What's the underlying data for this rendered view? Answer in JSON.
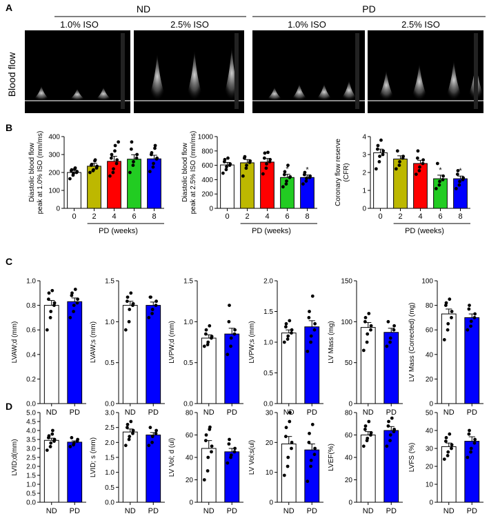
{
  "panels": {
    "a": "A",
    "b": "B",
    "c": "C",
    "d": "D"
  },
  "panel_a": {
    "group_nd": "ND",
    "group_pd": "PD",
    "iso_labels": [
      "1.0% ISO",
      "2.5% ISO",
      "1.0% ISO",
      "2.5% ISO"
    ],
    "row_label": "Blood flow"
  },
  "chart_data": [
    {
      "id": "b1",
      "type": "bar",
      "categories": [
        "0",
        "2",
        "4",
        "6",
        "8"
      ],
      "values": [
        200,
        235,
        262,
        274,
        276
      ],
      "errors": [
        12,
        16,
        28,
        25,
        20
      ],
      "colors": [
        "#ffffff",
        "#bdb800",
        "#ff0000",
        "#22cc22",
        "#0000ff"
      ],
      "ylabel": [
        "Diastolic blood flow",
        "peak at 1.0% ISO (mm/ms)"
      ],
      "xlabel": "PD (weeks)",
      "ylim": [
        0,
        400
      ],
      "yticks": [
        0,
        100,
        200,
        300,
        400
      ],
      "significance": [
        "",
        "",
        "",
        "",
        ""
      ],
      "points": [
        [
          165,
          185,
          195,
          200,
          205,
          210,
          215,
          220,
          225
        ],
        [
          200,
          210,
          215,
          225,
          235,
          240,
          245,
          265,
          270
        ],
        [
          180,
          200,
          220,
          250,
          270,
          280,
          300,
          320,
          350,
          370
        ],
        [
          200,
          240,
          260,
          280,
          300,
          330,
          370
        ],
        [
          205,
          230,
          250,
          275,
          280,
          300,
          310,
          335,
          350
        ]
      ]
    },
    {
      "id": "b2",
      "type": "bar",
      "categories": [
        "0",
        "2",
        "4",
        "6",
        "8"
      ],
      "values": [
        605,
        635,
        645,
        430,
        430
      ],
      "errors": [
        35,
        45,
        50,
        45,
        35
      ],
      "colors": [
        "#ffffff",
        "#bdb800",
        "#ff0000",
        "#22cc22",
        "#0000ff"
      ],
      "ylabel": [
        "Diastolic blood flow",
        "peak at 2.5% ISO (mm/ms)"
      ],
      "xlabel": "PD (weeks)",
      "ylim": [
        0,
        1000
      ],
      "yticks": [
        0,
        200,
        400,
        600,
        800,
        1000
      ],
      "significance": [
        "",
        "",
        "",
        "*",
        "*"
      ],
      "points": [
        [
          490,
          540,
          580,
          600,
          620,
          650,
          680,
          700
        ],
        [
          450,
          560,
          600,
          640,
          660,
          700,
          720
        ],
        [
          480,
          560,
          620,
          650,
          680,
          700,
          770,
          780
        ],
        [
          300,
          340,
          380,
          430,
          440,
          470,
          510,
          600
        ],
        [
          340,
          380,
          420,
          430,
          450,
          470,
          500
        ]
      ]
    },
    {
      "id": "b3",
      "type": "bar",
      "categories": [
        "0",
        "2",
        "4",
        "6",
        "8"
      ],
      "values": [
        3.1,
        2.75,
        2.5,
        1.65,
        1.65
      ],
      "errors": [
        0.2,
        0.18,
        0.18,
        0.2,
        0.15
      ],
      "colors": [
        "#ffffff",
        "#bdb800",
        "#ff0000",
        "#22cc22",
        "#0000ff"
      ],
      "ylabel": [
        "Coronary flow reserve",
        "(CFR)"
      ],
      "xlabel": "PD (weeks)",
      "ylim": [
        0,
        4
      ],
      "yticks": [
        0,
        1,
        2,
        3,
        4
      ],
      "significance": [
        "",
        "",
        "",
        "*",
        "*"
      ],
      "points": [
        [
          2.2,
          2.6,
          2.9,
          3.0,
          3.2,
          3.3,
          3.5,
          3.8
        ],
        [
          2.2,
          2.4,
          2.6,
          2.8,
          2.9,
          3.2
        ],
        [
          1.9,
          2.1,
          2.3,
          2.5,
          2.7,
          2.8,
          3.2
        ],
        [
          1.1,
          1.3,
          1.5,
          1.6,
          1.8,
          2.5
        ],
        [
          1.1,
          1.3,
          1.5,
          1.6,
          1.7,
          1.9,
          2.1
        ]
      ]
    },
    {
      "id": "c1",
      "type": "bar",
      "categories": [
        "ND",
        "PD"
      ],
      "values": [
        0.8,
        0.83
      ],
      "errors": [
        0.04,
        0.03
      ],
      "colors": [
        "#ffffff",
        "#0000ff"
      ],
      "ylabel": [
        "LVAW;d (mm)"
      ],
      "ylim": [
        0,
        1.0
      ],
      "yticks": [
        0,
        0.2,
        0.4,
        0.6,
        0.8,
        1.0
      ],
      "significance": [
        "",
        ""
      ],
      "points": [
        [
          0.6,
          0.7,
          0.75,
          0.8,
          0.82,
          0.85,
          0.9,
          0.92
        ],
        [
          0.7,
          0.75,
          0.8,
          0.82,
          0.85,
          0.88,
          0.9,
          0.93
        ]
      ]
    },
    {
      "id": "c2",
      "type": "bar",
      "categories": [
        "ND",
        "PD"
      ],
      "values": [
        1.2,
        1.2
      ],
      "errors": [
        0.05,
        0.04
      ],
      "colors": [
        "#ffffff",
        "#0000ff"
      ],
      "ylabel": [
        "LVAW;s (mm)"
      ],
      "ylim": [
        0,
        1.5
      ],
      "yticks": [
        0,
        0.5,
        1.0,
        1.5
      ],
      "significance": [
        "",
        ""
      ],
      "points": [
        [
          0.9,
          1.0,
          1.15,
          1.2,
          1.22,
          1.25,
          1.3,
          1.35
        ],
        [
          1.05,
          1.1,
          1.15,
          1.2,
          1.25,
          1.3,
          1.3
        ]
      ]
    },
    {
      "id": "c3",
      "type": "bar",
      "categories": [
        "ND",
        "PD"
      ],
      "values": [
        0.8,
        0.85
      ],
      "errors": [
        0.04,
        0.07
      ],
      "colors": [
        "#ffffff",
        "#0000ff"
      ],
      "ylabel": [
        "LVPW;d (mm)"
      ],
      "ylim": [
        0,
        1.5
      ],
      "yticks": [
        0,
        0.5,
        1.0,
        1.5
      ],
      "significance": [
        "",
        ""
      ],
      "points": [
        [
          0.7,
          0.72,
          0.75,
          0.8,
          0.82,
          0.85,
          0.9,
          0.95
        ],
        [
          0.6,
          0.7,
          0.8,
          0.85,
          0.9,
          1.0,
          1.2
        ]
      ]
    },
    {
      "id": "c4",
      "type": "bar",
      "categories": [
        "ND",
        "PD"
      ],
      "values": [
        1.15,
        1.25
      ],
      "errors": [
        0.05,
        0.1
      ],
      "colors": [
        "#ffffff",
        "#0000ff"
      ],
      "ylabel": [
        "LVPW;s (mm)"
      ],
      "ylim": [
        0,
        2.0
      ],
      "yticks": [
        0,
        0.5,
        1.0,
        1.5,
        2.0
      ],
      "significance": [
        "",
        ""
      ],
      "points": [
        [
          1.0,
          1.05,
          1.1,
          1.15,
          1.2,
          1.25,
          1.3,
          1.35
        ],
        [
          0.85,
          1.0,
          1.1,
          1.2,
          1.3,
          1.4,
          1.5,
          1.75
        ]
      ]
    },
    {
      "id": "c5",
      "type": "bar",
      "categories": [
        "ND",
        "PD"
      ],
      "values": [
        93,
        87
      ],
      "errors": [
        6,
        5
      ],
      "colors": [
        "#ffffff",
        "#0000ff"
      ],
      "ylabel": [
        "LV Mass (mg)"
      ],
      "ylim": [
        0,
        150
      ],
      "yticks": [
        0,
        50,
        100,
        150
      ],
      "significance": [
        "",
        ""
      ],
      "points": [
        [
          65,
          75,
          85,
          90,
          95,
          100,
          105,
          110
        ],
        [
          70,
          75,
          80,
          90,
          95,
          100
        ]
      ]
    },
    {
      "id": "c6",
      "type": "bar",
      "categories": [
        "ND",
        "PD"
      ],
      "values": [
        73,
        70
      ],
      "errors": [
        4,
        3
      ],
      "colors": [
        "#ffffff",
        "#0000ff"
      ],
      "ylabel": [
        "LV Mass (Corrected) (mg)"
      ],
      "ylim": [
        0,
        100
      ],
      "yticks": [
        0,
        20,
        40,
        60,
        80,
        100
      ],
      "significance": [
        "",
        ""
      ],
      "points": [
        [
          52,
          60,
          65,
          70,
          75,
          80,
          82,
          85
        ],
        [
          60,
          63,
          67,
          70,
          73,
          77,
          80
        ]
      ]
    },
    {
      "id": "d1",
      "type": "bar",
      "categories": [
        "ND",
        "PD"
      ],
      "values": [
        3.45,
        3.35
      ],
      "errors": [
        0.12,
        0.07
      ],
      "colors": [
        "#ffffff",
        "#0000ff"
      ],
      "ylabel": [
        "LVID;d(mm)"
      ],
      "ylim": [
        0,
        5.0
      ],
      "yticks": [
        0,
        0.5,
        1.0,
        1.5,
        2.0,
        2.5,
        3.0,
        3.5,
        4.0,
        4.5,
        5.0
      ],
      "significance": [
        "",
        ""
      ],
      "points": [
        [
          2.9,
          3.1,
          3.3,
          3.4,
          3.5,
          3.6,
          3.7,
          3.8,
          4.0
        ],
        [
          3.1,
          3.2,
          3.3,
          3.4,
          3.5,
          3.6
        ]
      ]
    },
    {
      "id": "d2",
      "type": "bar",
      "categories": [
        "ND",
        "PD"
      ],
      "values": [
        2.35,
        2.25
      ],
      "errors": [
        0.1,
        0.08
      ],
      "colors": [
        "#ffffff",
        "#0000ff"
      ],
      "ylabel": [
        "LVID; s (mm)"
      ],
      "ylim": [
        0,
        3.0
      ],
      "yticks": [
        0,
        0.5,
        1.0,
        1.5,
        2.0,
        2.5,
        3.0
      ],
      "significance": [
        "",
        ""
      ],
      "points": [
        [
          1.9,
          2.1,
          2.2,
          2.3,
          2.4,
          2.5,
          2.6,
          2.7
        ],
        [
          1.9,
          2.0,
          2.2,
          2.3,
          2.4,
          2.5
        ]
      ]
    },
    {
      "id": "d3",
      "type": "bar",
      "categories": [
        "ND",
        "PD"
      ],
      "values": [
        48,
        45
      ],
      "errors": [
        7,
        3
      ],
      "colors": [
        "#ffffff",
        "#0000ff"
      ],
      "ylabel": [
        "LV Vol; d (ul)"
      ],
      "ylim": [
        0,
        80
      ],
      "yticks": [
        0,
        20,
        40,
        60,
        80
      ],
      "significance": [
        "",
        ""
      ],
      "points": [
        [
          20,
          28,
          40,
          45,
          50,
          55,
          60,
          65,
          67
        ],
        [
          35,
          40,
          42,
          45,
          48,
          52,
          56
        ]
      ]
    },
    {
      "id": "d4",
      "type": "bar",
      "categories": [
        "ND",
        "PD"
      ],
      "values": [
        19.5,
        17.5
      ],
      "errors": [
        2.5,
        2
      ],
      "colors": [
        "#ffffff",
        "#0000ff"
      ],
      "ylabel": [
        "LV Vol;s(ul)"
      ],
      "ylim": [
        0,
        30
      ],
      "yticks": [
        0,
        10,
        20,
        30
      ],
      "significance": [
        "",
        ""
      ],
      "points": [
        [
          9,
          12,
          15,
          18,
          20,
          22,
          25,
          27,
          30
        ],
        [
          7,
          12,
          14,
          16,
          18,
          20,
          23,
          26
        ]
      ]
    },
    {
      "id": "d5",
      "type": "bar",
      "categories": [
        "ND",
        "PD"
      ],
      "values": [
        60,
        64
      ],
      "errors": [
        3,
        3.5
      ],
      "colors": [
        "#ffffff",
        "#0000ff"
      ],
      "ylabel": [
        "LVEF(%)"
      ],
      "ylim": [
        0,
        80
      ],
      "yticks": [
        0,
        20,
        40,
        60,
        80
      ],
      "significance": [
        "",
        ""
      ],
      "points": [
        [
          50,
          55,
          57,
          60,
          62,
          65,
          68,
          72
        ],
        [
          50,
          55,
          60,
          63,
          65,
          68,
          72,
          75
        ]
      ]
    },
    {
      "id": "d6",
      "type": "bar",
      "categories": [
        "ND",
        "PD"
      ],
      "values": [
        31,
        34
      ],
      "errors": [
        2,
        2.5
      ],
      "colors": [
        "#ffffff",
        "#0000ff"
      ],
      "ylabel": [
        "LVFS (%)"
      ],
      "ylim": [
        0,
        50
      ],
      "yticks": [
        0,
        10,
        20,
        30,
        40,
        50
      ],
      "significance": [
        "",
        ""
      ],
      "points": [
        [
          24,
          26,
          28,
          30,
          32,
          34,
          36,
          38
        ],
        [
          25,
          28,
          30,
          33,
          35,
          38,
          40
        ]
      ]
    }
  ]
}
